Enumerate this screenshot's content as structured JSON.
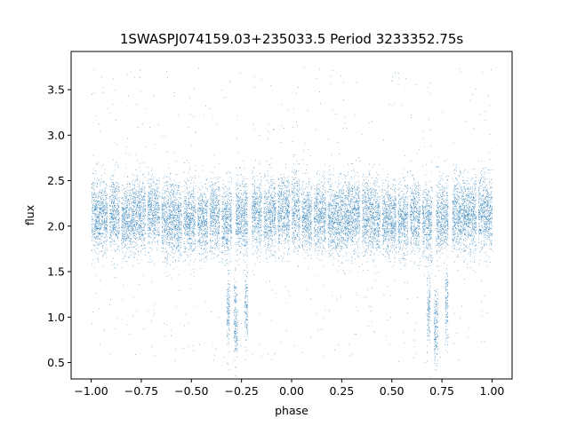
{
  "chart_data": {
    "type": "scatter",
    "title": "1SWASPJ074159.03+235033.5 Period 3233352.75s",
    "xlabel": "phase",
    "ylabel": "flux",
    "xlim": [
      -1.1,
      1.1
    ],
    "ylim": [
      0.32,
      3.92
    ],
    "xticks": [
      -1.0,
      -0.75,
      -0.5,
      -0.25,
      0.0,
      0.25,
      0.5,
      0.75,
      1.0
    ],
    "xtick_labels": [
      "−1.00",
      "−0.75",
      "−0.50",
      "−0.25",
      "0.00",
      "0.25",
      "0.50",
      "0.75",
      "1.00"
    ],
    "yticks": [
      0.5,
      1.0,
      1.5,
      2.0,
      2.5,
      3.0,
      3.5
    ],
    "ytick_labels": [
      "0.5",
      "1.0",
      "1.5",
      "2.0",
      "2.5",
      "3.0",
      "3.5"
    ],
    "grid": false,
    "legend": "none",
    "marker_color": "#1f77b4",
    "series": [
      {
        "points_summary": "dense scatter of thousands of points, main band flux ~1.7-2.5 centered near 2.1, sparse outliers up to ~3.75 and down to ~0.5; secondary dip cluster near flux 0.8-1.3 at phases ~-0.32, -0.28, -0.22 and ~0.68, 0.72, 0.78",
        "segments": [
          [
            -1.0,
            -0.97,
            2.12
          ],
          [
            -0.97,
            -0.92,
            2.1
          ],
          [
            -0.91,
            -0.86,
            2.13
          ],
          [
            -0.85,
            -0.8,
            2.08
          ],
          [
            -0.8,
            -0.73,
            2.12
          ],
          [
            -0.72,
            -0.66,
            2.16
          ],
          [
            -0.65,
            -0.58,
            2.1
          ],
          [
            -0.58,
            -0.55,
            2.05
          ],
          [
            -0.54,
            -0.48,
            2.08
          ],
          [
            -0.47,
            -0.42,
            2.05
          ],
          [
            -0.41,
            -0.36,
            2.1
          ],
          [
            -0.35,
            -0.3,
            2.05
          ],
          [
            -0.28,
            -0.22,
            2.1
          ],
          [
            -0.2,
            -0.15,
            2.14
          ],
          [
            -0.14,
            -0.08,
            2.12
          ],
          [
            -0.07,
            -0.01,
            2.15
          ],
          [
            0.0,
            0.04,
            2.14
          ],
          [
            0.05,
            0.1,
            2.1
          ],
          [
            0.11,
            0.17,
            2.13
          ],
          [
            0.18,
            0.22,
            2.1
          ],
          [
            0.22,
            0.28,
            2.08
          ],
          [
            0.28,
            0.34,
            2.14
          ],
          [
            0.35,
            0.4,
            2.12
          ],
          [
            0.4,
            0.44,
            2.08
          ],
          [
            0.45,
            0.52,
            2.08
          ],
          [
            0.53,
            0.58,
            2.05
          ],
          [
            0.59,
            0.64,
            2.1
          ],
          [
            0.65,
            0.7,
            2.06
          ],
          [
            0.72,
            0.78,
            2.1
          ],
          [
            0.8,
            0.86,
            2.14
          ],
          [
            0.86,
            0.92,
            2.12
          ],
          [
            0.93,
            1.0,
            2.15
          ]
        ],
        "dips": [
          [
            -0.325,
            -0.31,
            1.05
          ],
          [
            -0.29,
            -0.27,
            0.95
          ],
          [
            -0.235,
            -0.22,
            1.1
          ],
          [
            0.675,
            0.69,
            1.05
          ],
          [
            0.71,
            0.73,
            0.95
          ],
          [
            0.765,
            0.78,
            1.1
          ]
        ]
      }
    ]
  }
}
